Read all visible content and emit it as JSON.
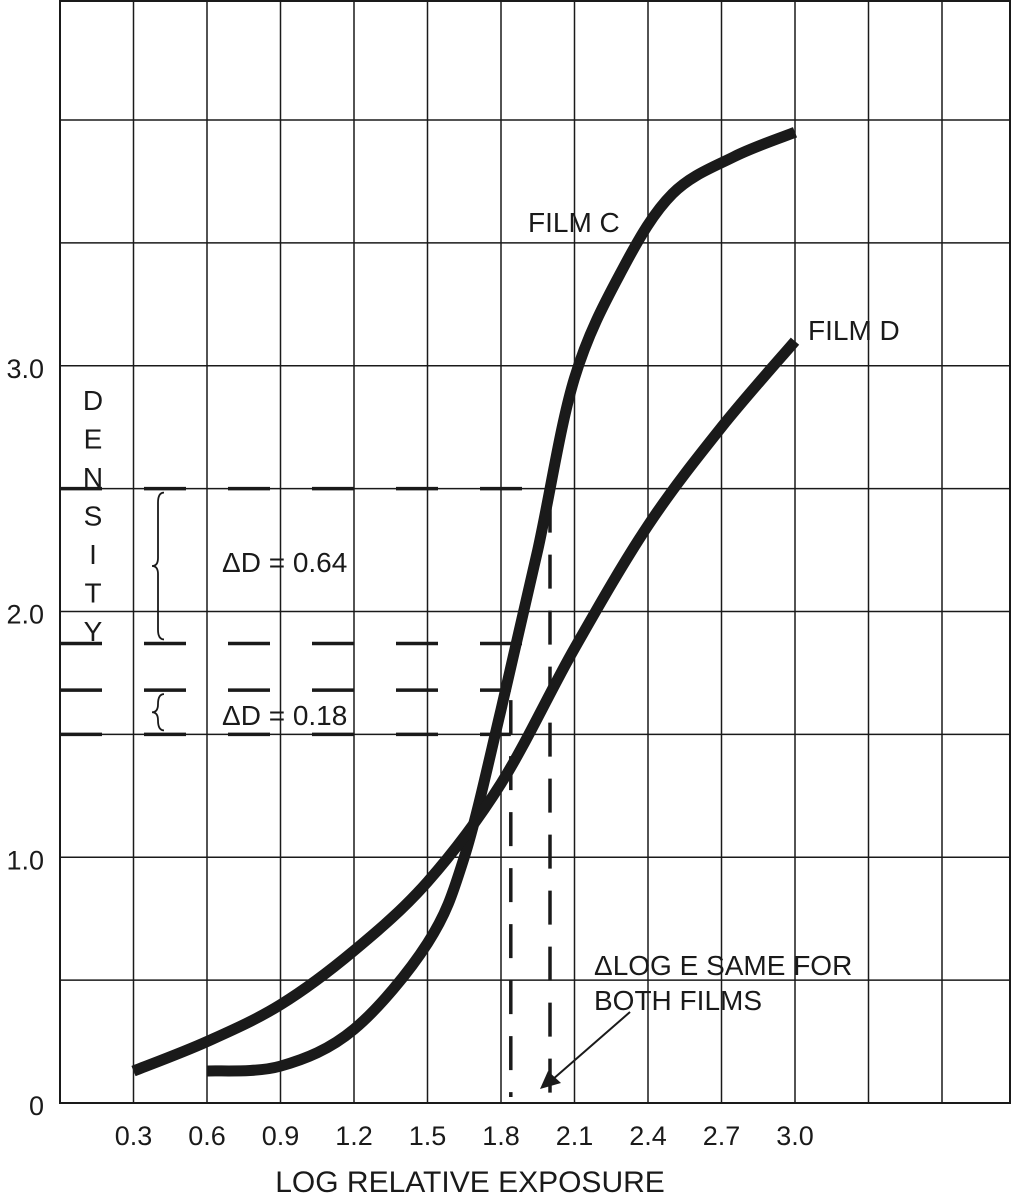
{
  "chart_data": {
    "type": "line",
    "xlabel": "LOG RELATIVE EXPOSURE",
    "ylabel": "DENSITY",
    "xlim": [
      0,
      3.6
    ],
    "ylim": [
      0,
      4.0
    ],
    "grid": true,
    "x_ticks": [
      "0.3",
      "0.6",
      "0.9",
      "1.2",
      "1.5",
      "1.8",
      "2.1",
      "2.4",
      "2.7",
      "3.0"
    ],
    "x_tick_values": [
      0.3,
      0.6,
      0.9,
      1.2,
      1.5,
      1.8,
      2.1,
      2.4,
      2.7,
      3.0
    ],
    "y_ticks": [
      "0",
      "1.0",
      "2.0",
      "3.0"
    ],
    "y_tick_values": [
      0,
      1.0,
      2.0,
      3.0
    ],
    "series": [
      {
        "name": "FILM C",
        "points": [
          [
            0.6,
            0.13
          ],
          [
            0.9,
            0.15
          ],
          [
            1.2,
            0.3
          ],
          [
            1.5,
            0.65
          ],
          [
            1.65,
            1.0
          ],
          [
            1.8,
            1.6
          ],
          [
            1.95,
            2.25
          ],
          [
            2.1,
            2.95
          ],
          [
            2.3,
            3.4
          ],
          [
            2.5,
            3.7
          ],
          [
            2.75,
            3.85
          ],
          [
            3.0,
            3.95
          ]
        ]
      },
      {
        "name": "FILM D",
        "points": [
          [
            0.3,
            0.13
          ],
          [
            0.6,
            0.25
          ],
          [
            0.9,
            0.4
          ],
          [
            1.2,
            0.62
          ],
          [
            1.5,
            0.9
          ],
          [
            1.8,
            1.3
          ],
          [
            2.1,
            1.85
          ],
          [
            2.4,
            2.35
          ],
          [
            2.7,
            2.75
          ],
          [
            3.0,
            3.1
          ]
        ]
      }
    ],
    "reference_levels": {
      "film_c": {
        "low": 1.87,
        "high": 2.5,
        "x": 2.0
      },
      "film_d": {
        "low": 1.5,
        "high": 1.68,
        "x": 1.84
      }
    },
    "annotations": {
      "delta_d_c": "ΔD = 0.64",
      "delta_d_d": "ΔD = 0.18",
      "delta_log_e": [
        "ΔLOG E SAME FOR",
        "BOTH FILMS"
      ]
    }
  }
}
